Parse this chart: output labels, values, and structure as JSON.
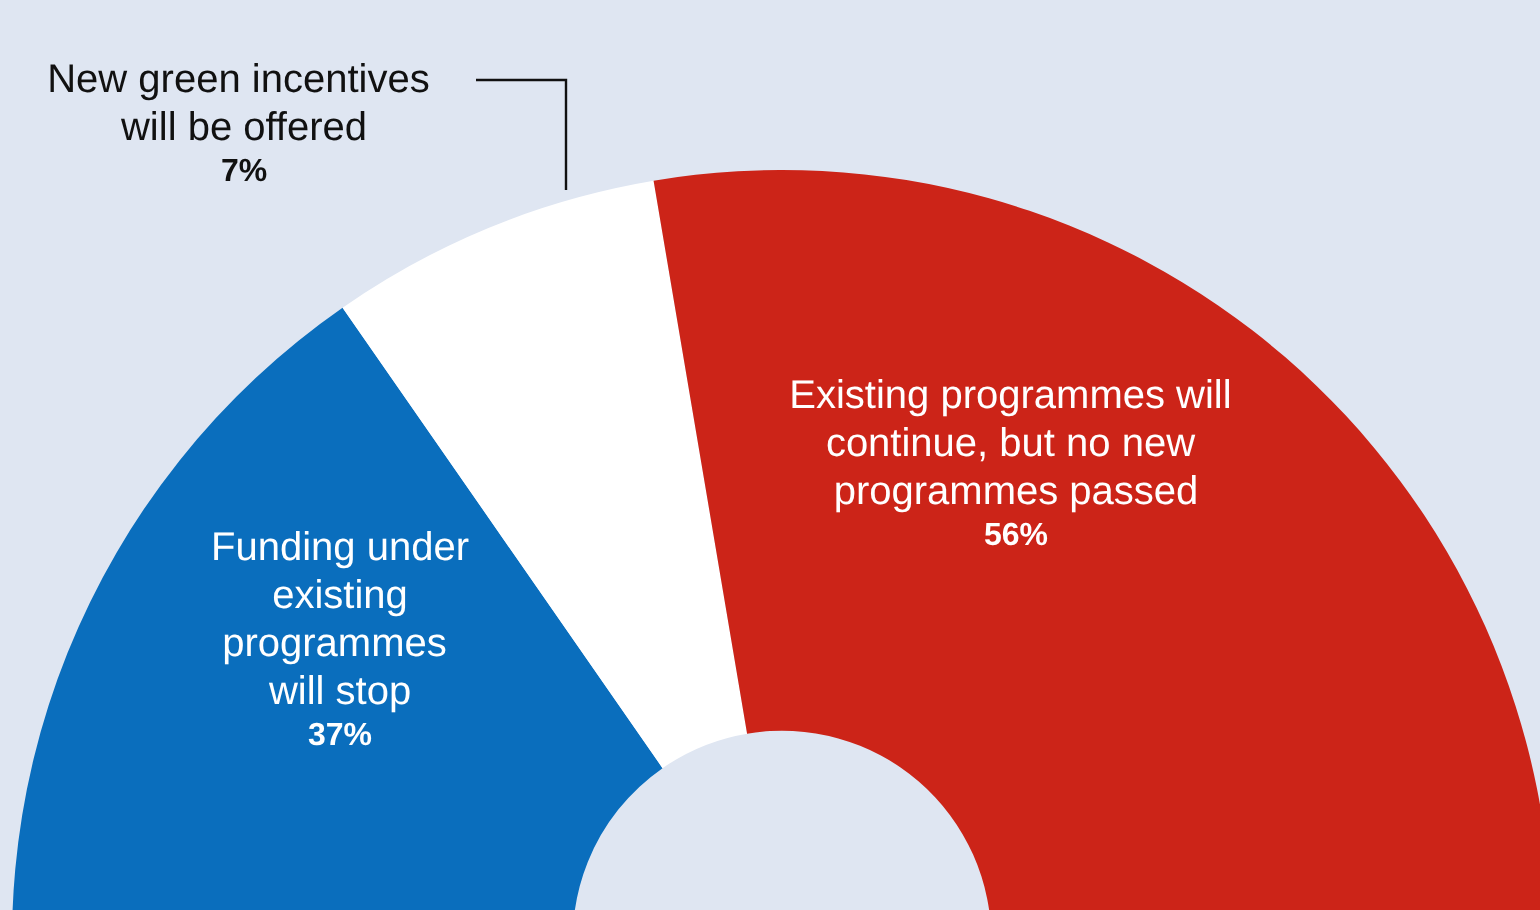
{
  "chart_data": {
    "type": "donut",
    "categories": [
      "Funding under existing programmes will stop",
      "New green incentives will be offered",
      "Existing programmes will continue, but no new programmes passed"
    ],
    "values": [
      37,
      7,
      56
    ],
    "value_labels": [
      "37%",
      "7%",
      "56%"
    ],
    "colors": [
      "#0a6ebd",
      "#ffffff",
      "#cc2418"
    ],
    "legend": false
  }
}
